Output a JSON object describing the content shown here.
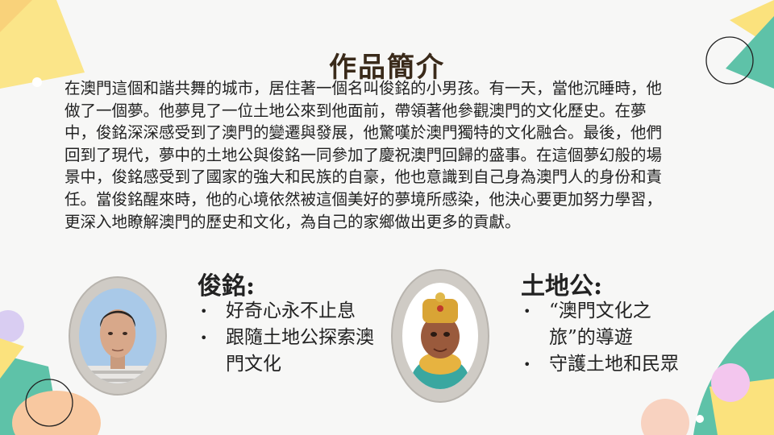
{
  "page": {
    "title": "作品簡介",
    "paragraph": "在澳門這個和諧共舞的城市，居住著一個名叫俊銘的小男孩。有一天，當他沉睡時，他做了一個夢。他夢見了一位土地公來到他面前，帶領著他參觀澳門的文化歷史。在夢中，俊銘深深感受到了澳門的變遷與發展，他驚嘆於澳門獨特的文化融合。最後，他們回到了現代，夢中的土地公與俊銘一同參加了慶祝澳門回歸的盛事。在這個夢幻般的場景中，俊銘感受到了國家的強大和民族的自豪，他也意識到自己身為澳門人的身份和責任。當俊銘醒來時，他的心境依然被這個美好的夢境所感染，他決心要更加努力學習，更深入地瞭解澳門的歷史和文化，為自己的家鄉做出更多的貢獻。"
  },
  "characters": [
    {
      "name": "俊銘:",
      "traits": [
        "好奇心永不止息",
        "跟隨土地公探索澳門文化"
      ]
    },
    {
      "name": "土地公:",
      "traits": [
        "“澳門文化之旅”的導遊",
        "守護土地和民眾"
      ]
    }
  ],
  "colors": {
    "yellow": "#fbe27d",
    "teal": "#5ec2a8",
    "pink": "#f6b8cd",
    "lavender": "#d9cdf2",
    "peach": "#f8c8a0",
    "frame": "#cfcbc5",
    "portrait_bg": "#a9c9e8"
  }
}
